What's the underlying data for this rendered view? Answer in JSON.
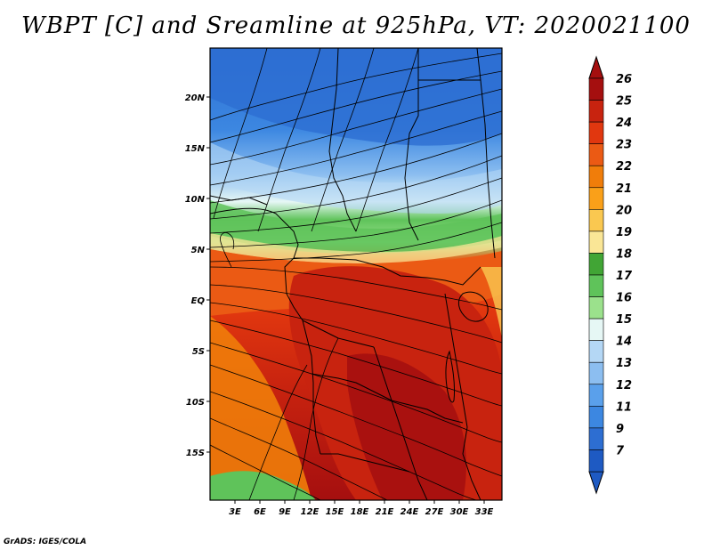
{
  "title": "WBPT [C] and Sreamline at 925hPa, VT: 2020021100",
  "credit": "GrADS: IGES/COLA",
  "map": {
    "lat_labels": [
      "20N",
      "15N",
      "10N",
      "5N",
      "EQ",
      "5S",
      "10S",
      "15S"
    ],
    "lon_labels": [
      "3E",
      "6E",
      "9E",
      "12E",
      "15E",
      "18E",
      "21E",
      "24E",
      "27E",
      "30E",
      "33E"
    ]
  },
  "colorbar": {
    "labels": [
      "26",
      "25",
      "24",
      "23",
      "22",
      "21",
      "20",
      "19",
      "18",
      "17",
      "16",
      "15",
      "14",
      "13",
      "12",
      "11",
      "9",
      "7"
    ],
    "colors": [
      "#a50f0f",
      "#c8230f",
      "#e1370f",
      "#eb5a14",
      "#f07d0a",
      "#faa019",
      "#fac850",
      "#fae696",
      "#41a535",
      "#5fc35a",
      "#9be18c",
      "#e6f7f5",
      "#b4d7f5",
      "#8cbef0",
      "#5aa0eb",
      "#3c87e1",
      "#2d6ed2",
      "#1e5ac3"
    ]
  }
}
